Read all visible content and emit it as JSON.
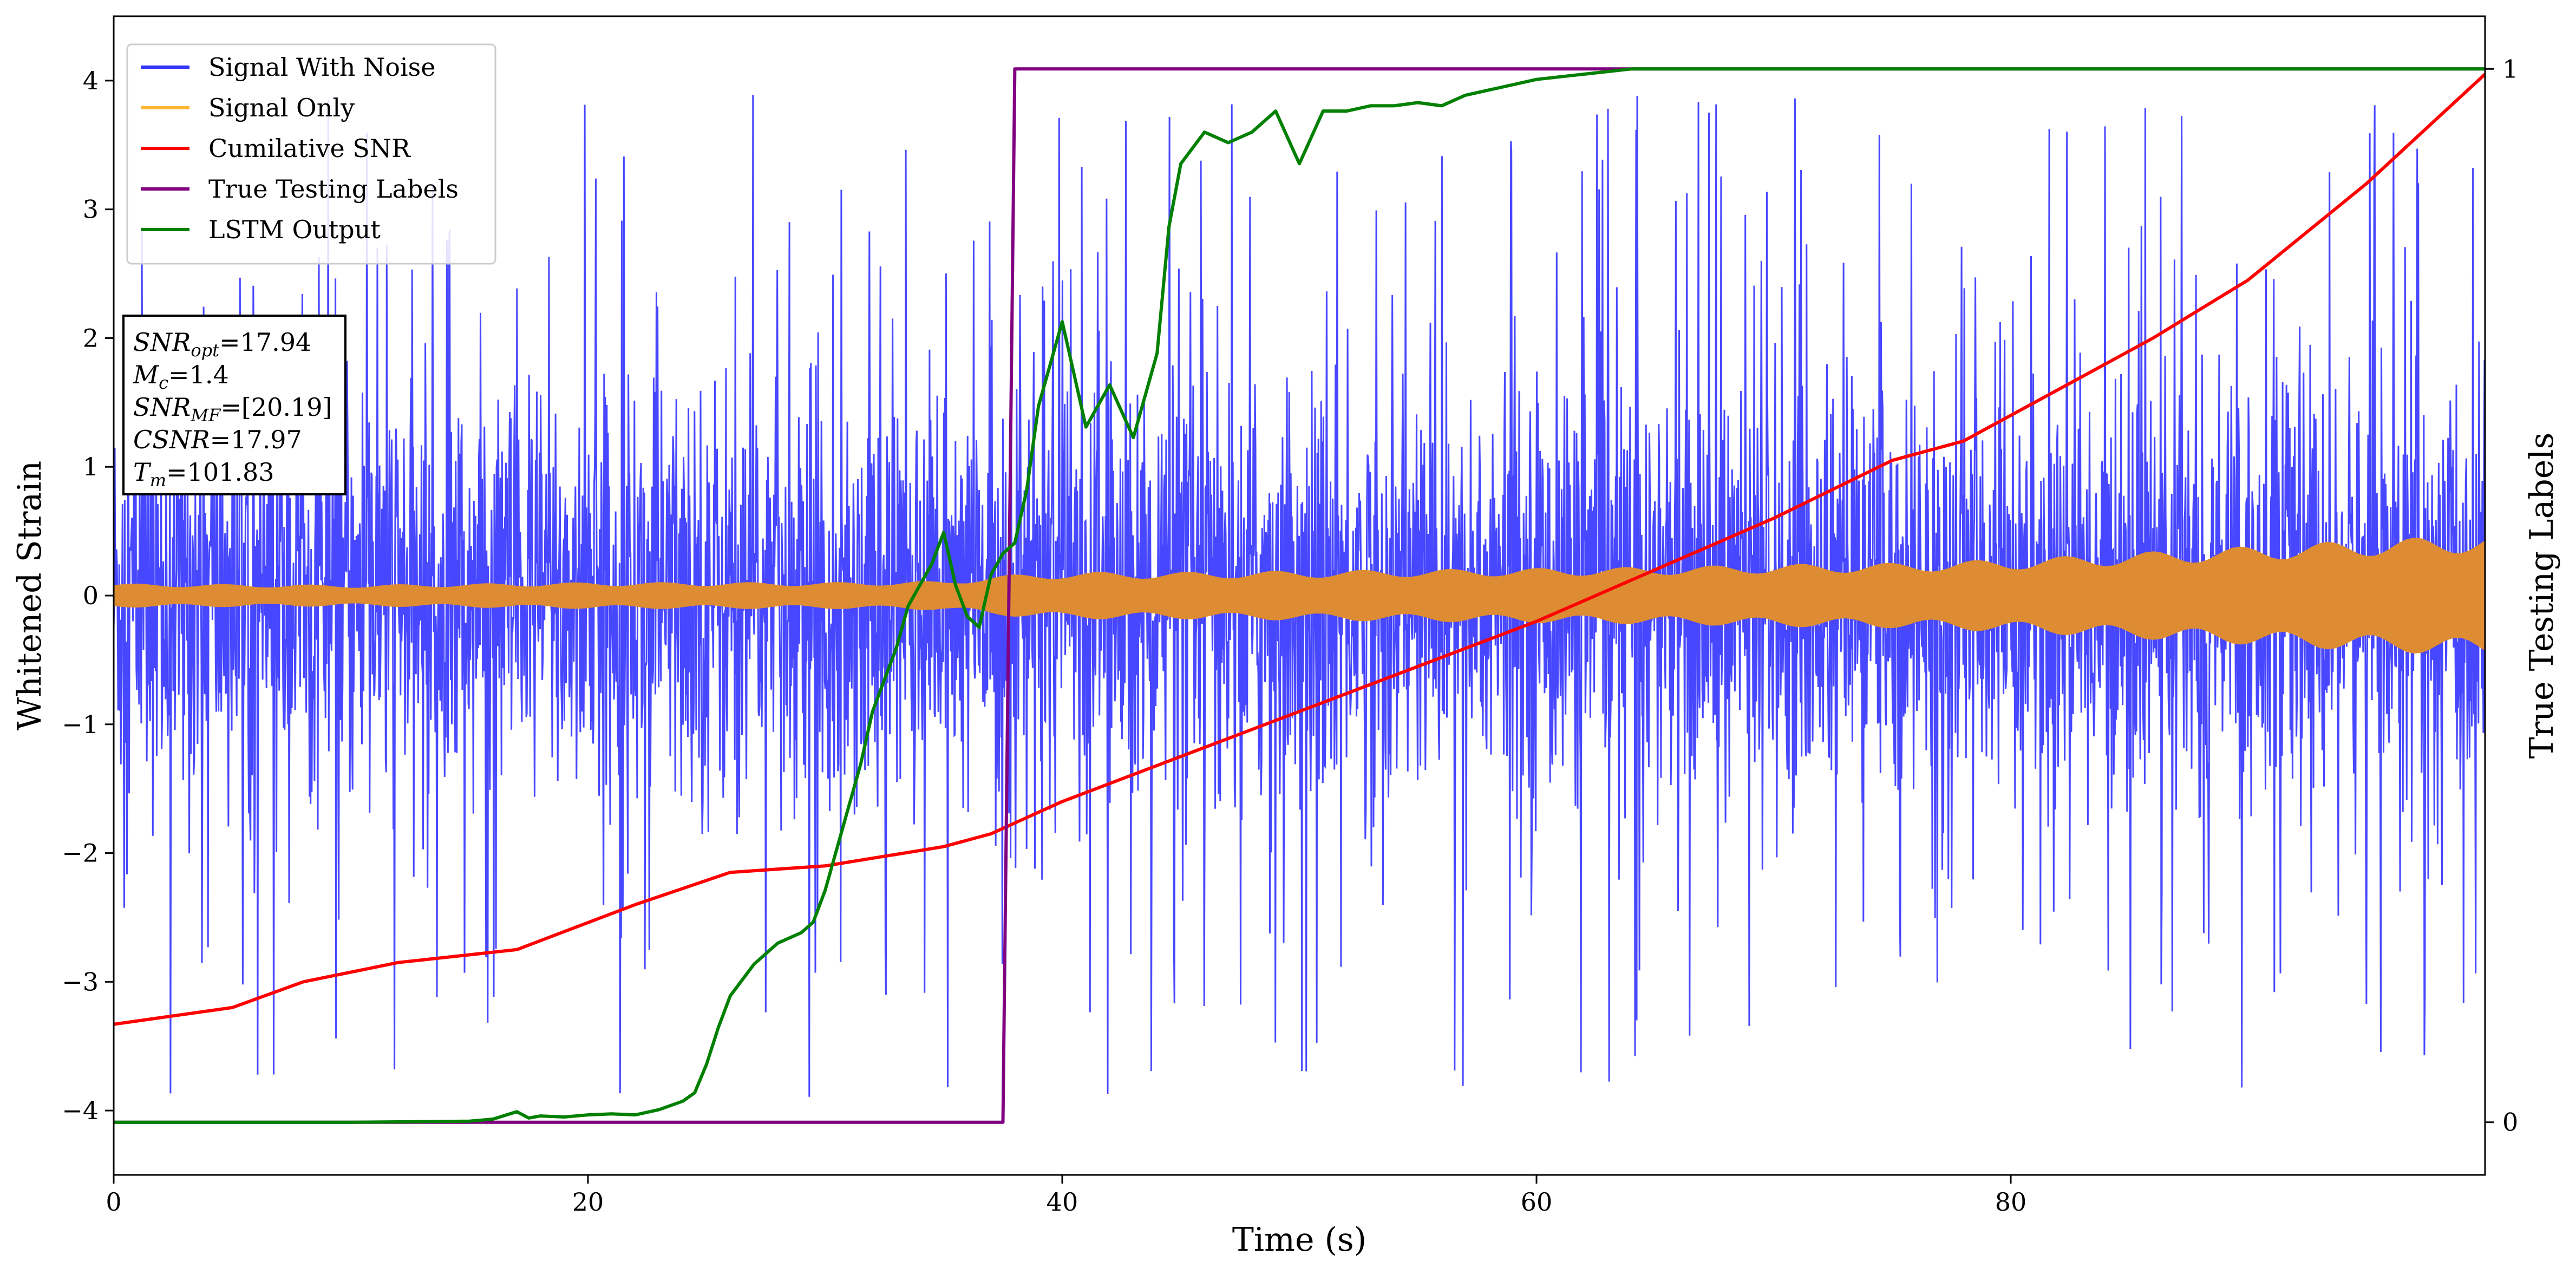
{
  "chart_data": {
    "type": "line",
    "xlabel": "Time (s)",
    "ylabel": "Whitened Strain",
    "y2label": "True Testing Labels",
    "xlim": [
      0,
      100
    ],
    "ylim": [
      -4.5,
      4.5
    ],
    "y2lim": [
      -0.05,
      1.05
    ],
    "xticks": [
      0,
      20,
      40,
      60,
      80
    ],
    "yticks": [
      -4,
      -3,
      -2,
      -1,
      0,
      1,
      2,
      3,
      4
    ],
    "y2ticks": [
      0,
      1
    ],
    "legend_position": "top-left",
    "legend": [
      {
        "label": "Signal With Noise",
        "color": "#3333ff"
      },
      {
        "label": "Signal Only",
        "color": "#ffb733"
      },
      {
        "label": "Cumilative SNR",
        "color": "#ff0000"
      },
      {
        "label": "True Testing Labels",
        "color": "#800080"
      },
      {
        "label": "LSTM Output",
        "color": "#008000"
      }
    ],
    "annotation": [
      {
        "sym": "SNR",
        "sub": "opt",
        "value": "=17.94"
      },
      {
        "sym": "M",
        "sub": "c",
        "value": "=1.4"
      },
      {
        "sym": "SNR",
        "sub": "MF",
        "value": "=[20.19]"
      },
      {
        "sym": "CSNR",
        "sub": "",
        "value": "=17.97"
      },
      {
        "sym": "T",
        "sub": "m",
        "value": "=101.83"
      }
    ],
    "series": [
      {
        "name": "Signal With Noise",
        "color": "#3333ff",
        "style": "noise",
        "band_typical": 1.5,
        "band_peak": 3.9
      },
      {
        "name": "Signal Only",
        "color": "#dd8c33",
        "style": "envelope",
        "x": [
          0,
          10,
          20,
          30,
          35,
          37,
          40,
          45,
          50,
          55,
          60,
          65,
          70,
          75,
          80,
          85,
          90,
          95,
          100
        ],
        "amplitude": [
          0.09,
          0.08,
          0.1,
          0.1,
          0.11,
          0.15,
          0.18,
          0.18,
          0.19,
          0.2,
          0.21,
          0.22,
          0.24,
          0.25,
          0.28,
          0.33,
          0.38,
          0.43,
          0.47
        ]
      },
      {
        "name": "Cumilative SNR",
        "color": "#ff0000",
        "axis": "left",
        "x": [
          0,
          5,
          8,
          12,
          17,
          22,
          26,
          30,
          35,
          37,
          40,
          45,
          50,
          55,
          60,
          65,
          70,
          75,
          78,
          82,
          86,
          90,
          95,
          100
        ],
        "y": [
          -3.33,
          -3.2,
          -3.0,
          -2.85,
          -2.75,
          -2.4,
          -2.15,
          -2.1,
          -1.95,
          -1.85,
          -1.6,
          -1.25,
          -0.9,
          -0.55,
          -0.2,
          0.2,
          0.6,
          1.05,
          1.2,
          1.6,
          2.0,
          2.45,
          3.2,
          4.05
        ]
      },
      {
        "name": "True Testing Labels",
        "color": "#800080",
        "axis": "right",
        "x": [
          0,
          37.5,
          38.0,
          100
        ],
        "y": [
          0,
          0,
          1,
          1
        ]
      },
      {
        "name": "LSTM Output",
        "color": "#008000",
        "axis": "right",
        "x": [
          0,
          10,
          15,
          16,
          17,
          17.5,
          18,
          19,
          20,
          21,
          22,
          23,
          24,
          24.5,
          25,
          25.5,
          26,
          27,
          28,
          29,
          29.5,
          30,
          30.5,
          31,
          31.5,
          32,
          33,
          33.5,
          34,
          34.5,
          35,
          35.5,
          36,
          36.5,
          37,
          37.5,
          38,
          38.5,
          39,
          40,
          41,
          42,
          43,
          44,
          44.5,
          45,
          46,
          47,
          48,
          49,
          50,
          51,
          52,
          53,
          54,
          55,
          56,
          57,
          58,
          59,
          60,
          62,
          64,
          65,
          100
        ],
        "y": [
          0,
          0,
          0.001,
          0.003,
          0.01,
          0.004,
          0.006,
          0.005,
          0.007,
          0.008,
          0.007,
          0.012,
          0.02,
          0.028,
          0.055,
          0.09,
          0.12,
          0.15,
          0.17,
          0.18,
          0.19,
          0.22,
          0.26,
          0.3,
          0.34,
          0.39,
          0.45,
          0.49,
          0.51,
          0.53,
          0.56,
          0.51,
          0.48,
          0.47,
          0.52,
          0.54,
          0.55,
          0.6,
          0.68,
          0.76,
          0.66,
          0.7,
          0.65,
          0.73,
          0.85,
          0.91,
          0.94,
          0.93,
          0.94,
          0.96,
          0.91,
          0.96,
          0.96,
          0.965,
          0.965,
          0.968,
          0.965,
          0.975,
          0.98,
          0.985,
          0.99,
          0.995,
          1.0,
          1.0,
          1.0
        ]
      }
    ]
  }
}
